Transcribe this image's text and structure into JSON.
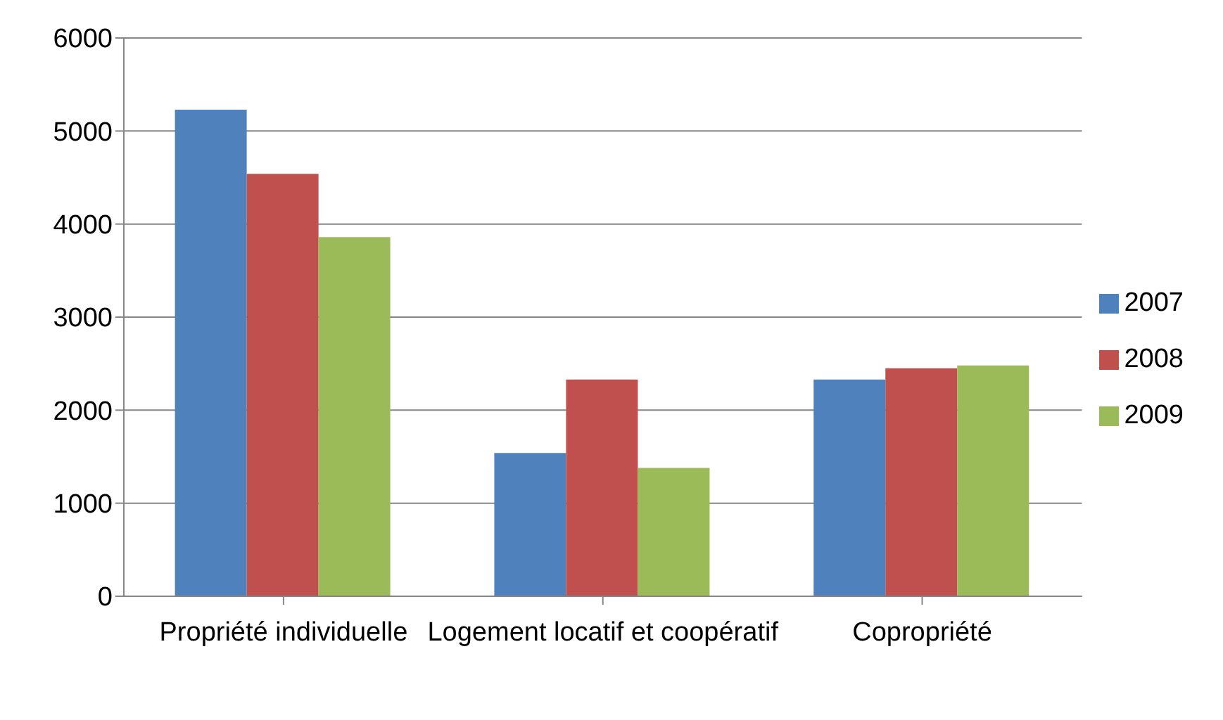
{
  "chart_data": {
    "type": "bar",
    "categories": [
      "Propriété individuelle",
      "Logement locatif et coopératif",
      "Copropriété"
    ],
    "series": [
      {
        "name": "2007",
        "color": "#4f81bd",
        "values": [
          5230,
          1540,
          2330
        ]
      },
      {
        "name": "2008",
        "color": "#c0504d",
        "values": [
          4540,
          2330,
          2450
        ]
      },
      {
        "name": "2009",
        "color": "#9bbb59",
        "values": [
          3860,
          1380,
          2480
        ]
      }
    ],
    "ylim": [
      0,
      6000
    ],
    "yticks": [
      0,
      1000,
      2000,
      3000,
      4000,
      5000,
      6000
    ],
    "grid": "y",
    "legend": "right"
  }
}
